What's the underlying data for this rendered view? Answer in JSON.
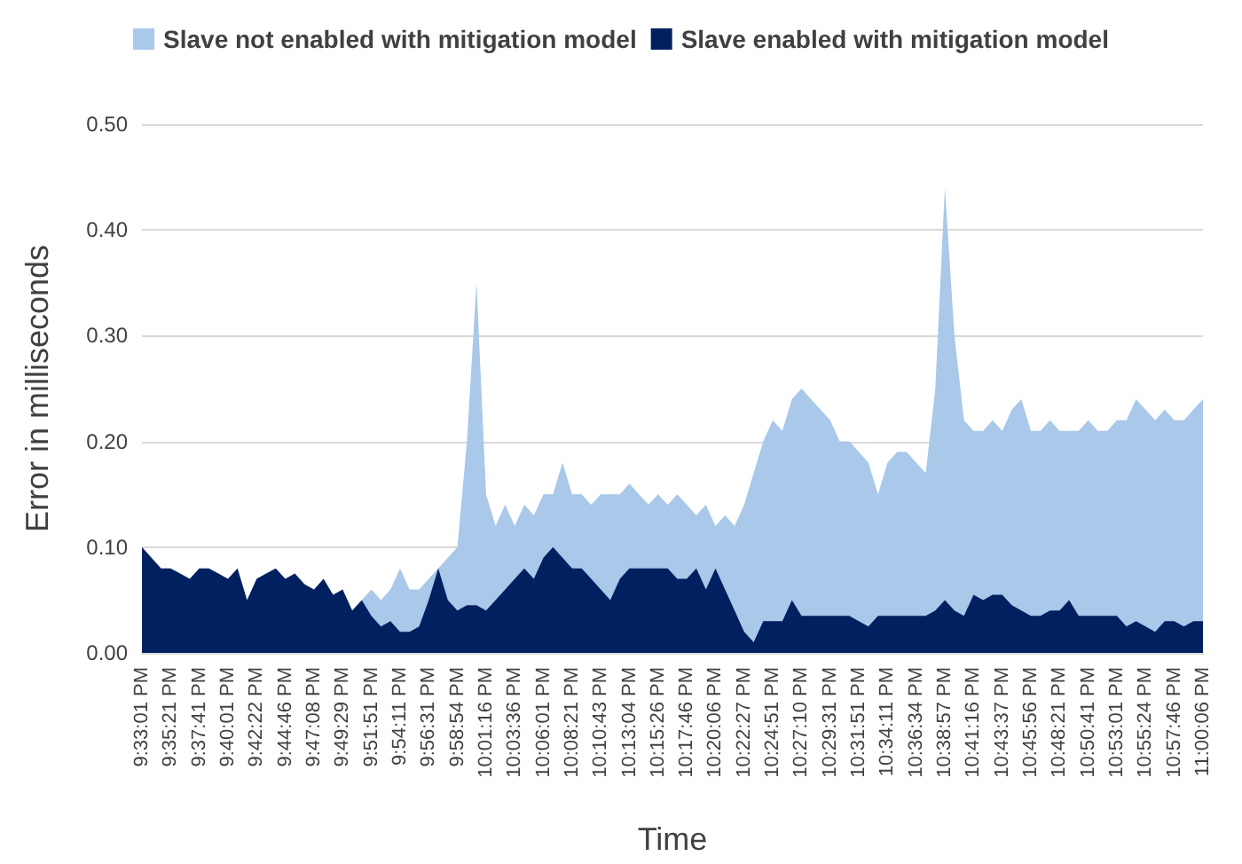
{
  "chart_data": {
    "type": "area",
    "xlabel": "Time",
    "ylabel": "Error in milliseconds",
    "categories": [
      "9:33:01 PM",
      null,
      null,
      "9:35:21 PM",
      null,
      null,
      "9:37:41 PM",
      null,
      null,
      "9:40:01 PM",
      null,
      null,
      "9:42:22 PM",
      null,
      null,
      "9:44:46 PM",
      null,
      null,
      "9:47:08 PM",
      null,
      null,
      "9:49:29 PM",
      null,
      null,
      "9:51:51 PM",
      null,
      null,
      "9:54:11 PM",
      null,
      null,
      "9:56:31 PM",
      null,
      null,
      "9:58:54 PM",
      null,
      null,
      "10:01:16 PM",
      null,
      null,
      "10:03:36 PM",
      null,
      null,
      "10:06:01 PM",
      null,
      null,
      "10:08:21 PM",
      null,
      null,
      "10:10:43 PM",
      null,
      null,
      "10:13:04 PM",
      null,
      null,
      "10:15:26 PM",
      null,
      null,
      "10:17:46 PM",
      null,
      null,
      "10:20:06 PM",
      null,
      null,
      "10:22:27 PM",
      null,
      null,
      "10:24:51 PM",
      null,
      null,
      "10:27:10 PM",
      null,
      null,
      "10:29:31 PM",
      null,
      null,
      "10:31:51 PM",
      null,
      null,
      "10:34:11 PM",
      null,
      null,
      "10:36:34 PM",
      null,
      null,
      "10:38:57 PM",
      null,
      null,
      "10:41:16 PM",
      null,
      null,
      "10:43:37 PM",
      null,
      null,
      "10:45:56 PM",
      null,
      null,
      "10:48:21 PM",
      null,
      null,
      "10:50:41 PM",
      null,
      null,
      "10:53:01 PM",
      null,
      null,
      "10:55:24 PM",
      null,
      null,
      "10:57:46 PM",
      null,
      null,
      "11:00:06 PM"
    ],
    "series": [
      {
        "name": "Slave not enabled with mitigation model",
        "color": "#a9c8ea",
        "values": [
          null,
          null,
          null,
          null,
          null,
          null,
          null,
          null,
          null,
          null,
          null,
          null,
          null,
          null,
          null,
          null,
          null,
          null,
          null,
          null,
          null,
          null,
          null,
          0.05,
          0.06,
          0.05,
          0.06,
          0.08,
          0.06,
          0.06,
          0.07,
          0.08,
          0.09,
          0.1,
          0.2,
          0.35,
          0.15,
          0.12,
          0.14,
          0.12,
          0.14,
          0.13,
          0.15,
          0.15,
          0.18,
          0.15,
          0.15,
          0.14,
          0.15,
          0.15,
          0.15,
          0.16,
          0.15,
          0.14,
          0.15,
          0.14,
          0.15,
          0.14,
          0.13,
          0.14,
          0.12,
          0.13,
          0.12,
          0.14,
          0.17,
          0.2,
          0.22,
          0.21,
          0.24,
          0.25,
          0.24,
          0.23,
          0.22,
          0.2,
          0.2,
          0.19,
          0.18,
          0.15,
          0.18,
          0.19,
          0.19,
          0.18,
          0.17,
          0.25,
          0.44,
          0.3,
          0.22,
          0.21,
          0.21,
          0.22,
          0.21,
          0.23,
          0.24,
          0.21,
          0.21,
          0.22,
          0.21,
          0.21,
          0.21,
          0.22,
          0.21,
          0.21,
          0.22,
          0.22,
          0.24,
          0.23,
          0.22,
          0.23,
          0.22,
          0.22,
          0.23,
          0.24
        ]
      },
      {
        "name": "Slave enabled with mitigation model",
        "color": "#002060",
        "values": [
          0.1,
          0.09,
          0.08,
          0.08,
          0.075,
          0.07,
          0.08,
          0.08,
          0.075,
          0.07,
          0.08,
          0.05,
          0.07,
          0.075,
          0.08,
          0.07,
          0.075,
          0.065,
          0.06,
          0.07,
          0.055,
          0.06,
          0.04,
          0.05,
          0.035,
          0.025,
          0.03,
          0.02,
          0.02,
          0.025,
          0.05,
          0.08,
          0.05,
          0.04,
          0.045,
          0.045,
          0.04,
          0.05,
          0.06,
          0.07,
          0.08,
          0.07,
          0.09,
          0.1,
          0.09,
          0.08,
          0.08,
          0.07,
          0.06,
          0.05,
          0.07,
          0.08,
          0.08,
          0.08,
          0.08,
          0.08,
          0.07,
          0.07,
          0.08,
          0.06,
          0.08,
          0.06,
          0.04,
          0.02,
          0.01,
          0.03,
          0.03,
          0.03,
          0.05,
          0.035,
          0.035,
          0.035,
          0.035,
          0.035,
          0.035,
          0.03,
          0.025,
          0.035,
          0.035,
          0.035,
          0.035,
          0.035,
          0.035,
          0.04,
          0.05,
          0.04,
          0.035,
          0.055,
          0.05,
          0.055,
          0.055,
          0.045,
          0.04,
          0.035,
          0.035,
          0.04,
          0.04,
          0.05,
          0.035,
          0.035,
          0.035,
          0.035,
          0.035,
          0.025,
          0.03,
          0.025,
          0.02,
          0.03,
          0.03,
          0.025,
          0.03,
          0.03
        ]
      }
    ],
    "ylim": [
      0,
      0.5
    ],
    "yticks": [
      {
        "value": 0,
        "label": "0.00"
      },
      {
        "value": 0.1,
        "label": "0.10"
      },
      {
        "value": 0.2,
        "label": "0.20"
      },
      {
        "value": 0.3,
        "label": "0.30"
      },
      {
        "value": 0.4,
        "label": "0.40"
      },
      {
        "value": 0.5,
        "label": "0.50"
      }
    ],
    "grid": "y",
    "legend": "top"
  }
}
